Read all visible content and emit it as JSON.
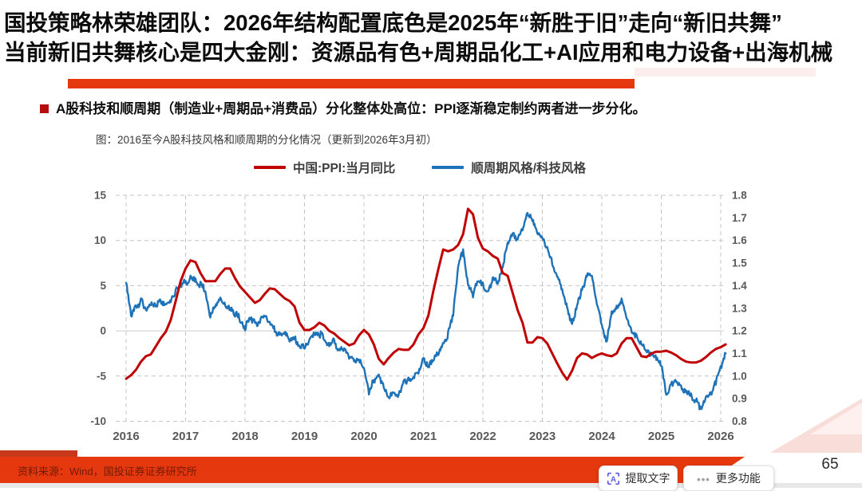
{
  "page": {
    "title_lines": [
      "国投策略林荣雄团队：2026年结构配置底色是2025年“新胜于旧”走向“新旧共舞”",
      "当前新旧共舞核心是四大金刚：资源品有色+周期品化工+AI应用和电力设备+出海机械"
    ],
    "bullet_text": "A股科技和顺周期（制造业+周期品+消费品）分化整体处高位：PPI逐渐稳定制约两者进一步分化。"
  },
  "chart_data": {
    "type": "line",
    "title": "图：2016至今A股科技风格和顺周期的分化情况（更新到2026年3月初）",
    "x_tick_labels": [
      "2016",
      "2017",
      "2018",
      "2019",
      "2020",
      "2021",
      "2022",
      "2023",
      "2024",
      "2025",
      "2026"
    ],
    "left_axis": {
      "min": -10,
      "max": 15,
      "ticks": [
        "15",
        "10",
        "5",
        "0",
        "-5",
        "-10"
      ]
    },
    "right_axis": {
      "min": 0.8,
      "max": 1.8,
      "ticks": [
        "1.8",
        "1.7",
        "1.6",
        "1.5",
        "1.4",
        "1.3",
        "1.2",
        "1.1",
        "1.0",
        "0.9",
        "0.8"
      ]
    },
    "grid": "dashed",
    "legend_position": "top-center",
    "monthly_start": "2016-01",
    "monthly_end": "2026-02",
    "series": [
      {
        "name": "中国:PPI:当月同比",
        "axis": "left",
        "color": "#c00000",
        "style": "smooth-monthly",
        "values": [
          -5.3,
          -4.9,
          -4.3,
          -3.4,
          -2.8,
          -2.6,
          -1.7,
          -0.8,
          -0.1,
          1.2,
          3.3,
          5.5,
          6.9,
          7.8,
          7.6,
          6.4,
          5.5,
          5.5,
          5.5,
          6.3,
          6.9,
          6.9,
          5.8,
          4.9,
          4.3,
          3.7,
          3.1,
          3.4,
          4.1,
          4.7,
          4.6,
          4.1,
          3.6,
          3.3,
          2.7,
          0.9,
          0.1,
          0.1,
          0.4,
          0.9,
          0.6,
          0.0,
          -0.3,
          -0.8,
          -1.2,
          -1.6,
          -1.4,
          -0.5,
          0.1,
          -0.4,
          -1.5,
          -3.1,
          -3.7,
          -3.0,
          -2.4,
          -2.0,
          -2.1,
          -2.1,
          -1.5,
          -0.4,
          0.3,
          1.7,
          4.4,
          6.8,
          9.0,
          8.8,
          9.0,
          9.5,
          10.7,
          13.5,
          12.9,
          10.3,
          9.1,
          8.8,
          8.3,
          8.0,
          6.4,
          6.1,
          4.2,
          2.3,
          0.9,
          -1.3,
          -1.3,
          -0.7,
          -0.8,
          -1.4,
          -2.5,
          -3.6,
          -4.6,
          -5.4,
          -4.4,
          -3.0,
          -2.5,
          -2.6,
          -3.0,
          -2.7,
          -2.5,
          -2.7,
          -2.8,
          -2.5,
          -1.4,
          -0.8,
          -0.8,
          -1.8,
          -2.8,
          -2.9,
          -2.5,
          -2.3,
          -2.3,
          -2.2,
          -2.4,
          -2.7,
          -3.1,
          -3.4,
          -3.5,
          -3.5,
          -3.3,
          -2.9,
          -2.4,
          -2.0,
          -1.8,
          -1.5
        ]
      },
      {
        "name": "顺周期风格/科技风格",
        "axis": "right",
        "color": "#1e72b8",
        "style": "noisy-daily",
        "values": [
          1.42,
          1.27,
          1.31,
          1.33,
          1.3,
          1.32,
          1.31,
          1.33,
          1.32,
          1.34,
          1.37,
          1.4,
          1.42,
          1.43,
          1.42,
          1.41,
          1.38,
          1.26,
          1.31,
          1.33,
          1.32,
          1.31,
          1.28,
          1.25,
          1.22,
          1.26,
          1.23,
          1.25,
          1.26,
          1.23,
          1.2,
          1.17,
          1.19,
          1.15,
          1.17,
          1.14,
          1.13,
          1.16,
          1.18,
          1.19,
          1.16,
          1.13,
          1.15,
          1.11,
          1.12,
          1.09,
          1.07,
          1.08,
          1.04,
          0.92,
          0.98,
          0.99,
          0.96,
          0.89,
          0.93,
          0.92,
          0.96,
          0.99,
          1.0,
          1.02,
          1.09,
          1.04,
          1.07,
          1.1,
          1.14,
          1.18,
          1.28,
          1.48,
          1.55,
          1.4,
          1.35,
          1.43,
          1.4,
          1.37,
          1.44,
          1.41,
          1.49,
          1.57,
          1.63,
          1.6,
          1.66,
          1.72,
          1.68,
          1.64,
          1.62,
          1.57,
          1.5,
          1.44,
          1.37,
          1.3,
          1.24,
          1.3,
          1.38,
          1.44,
          1.46,
          1.31,
          1.22,
          1.16,
          1.27,
          1.31,
          1.34,
          1.26,
          1.2,
          1.17,
          1.15,
          1.12,
          1.1,
          1.08,
          1.05,
          0.91,
          0.98,
          0.97,
          0.95,
          0.93,
          0.91,
          0.89,
          0.86,
          0.9,
          0.93,
          0.97,
          1.04,
          1.1
        ]
      }
    ]
  },
  "footer": {
    "source_text": "资料来源：Wind，国投证券证券研究所",
    "page_number": "65"
  },
  "overlay": {
    "buttons": [
      {
        "name": "extract-text",
        "icon_char": "A",
        "label": "提取文字"
      },
      {
        "name": "more-features",
        "icon_char": "•••",
        "label": "更多功能"
      }
    ]
  },
  "colors": {
    "title_text": "#0c0c0c",
    "divider_red": "#e6380e",
    "bullet_red": "#b50e0e",
    "footer_band": "#e6380e",
    "footer_tab": "#c8391b",
    "footer_text": "#731a05",
    "ppi_line": "#c00000",
    "ratio_line": "#1e72b8",
    "grid_line": "#c4c4c4",
    "zero_line": "#d6d6d6",
    "axis_text": "#595959",
    "pink_strip": "#fceeec",
    "pink_triangle": "#f8ddd8",
    "ocr_icon": "#5b5be0"
  }
}
